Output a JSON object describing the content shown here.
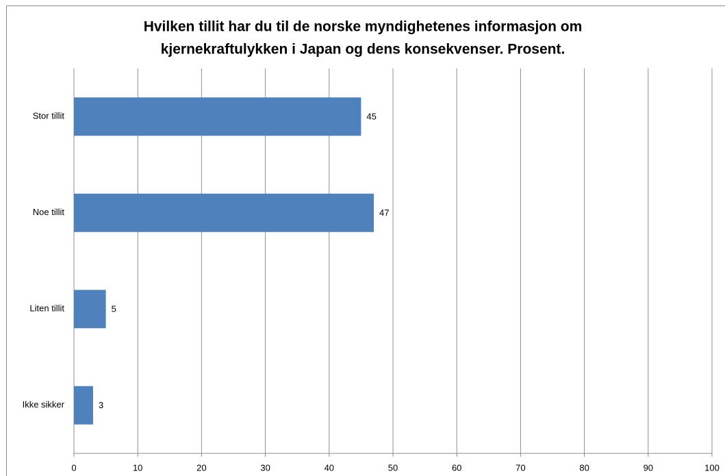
{
  "chart_data": {
    "type": "bar",
    "orientation": "horizontal",
    "title": [
      "Hvilken tillit har du til de norske myndighetenes informasjon om",
      "kjernekraftulykken i Japan og dens konsekvenser. Prosent."
    ],
    "categories": [
      "Stor tillit",
      "Noe tillit",
      "Liten tillit",
      "Ikke sikker"
    ],
    "values": [
      45,
      47,
      5,
      3
    ],
    "color": "#4f81bd",
    "xlim": [
      0,
      100
    ],
    "xticks": [
      0,
      10,
      20,
      30,
      40,
      50,
      60,
      70,
      80,
      90,
      100
    ],
    "grid": true
  }
}
